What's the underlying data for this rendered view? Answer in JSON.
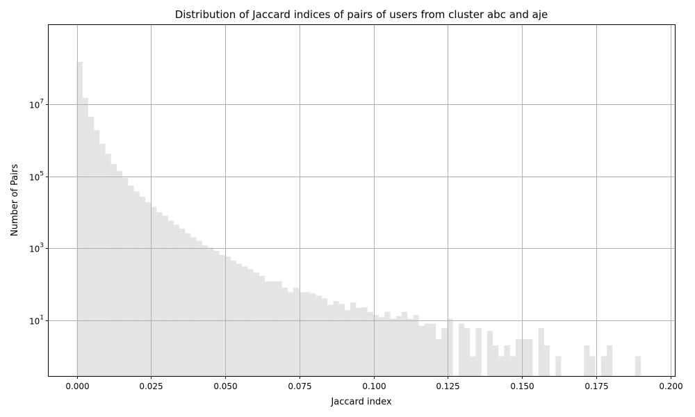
{
  "chart_data": {
    "type": "bar",
    "title": "Distribution of Jaccard indices of pairs of users from cluster abc and aje",
    "xlabel": "Jaccard index",
    "ylabel": "Number of Pairs",
    "yscale": "log",
    "xlim": [
      -0.0095,
      0.2015
    ],
    "ylim_exponent": [
      -0.55,
      9.2
    ],
    "xticks": [
      0.0,
      0.025,
      0.05,
      0.075,
      0.1,
      0.125,
      0.15,
      0.175,
      0.2
    ],
    "xtick_labels": [
      "0.000",
      "0.025",
      "0.050",
      "0.075",
      "0.100",
      "0.125",
      "0.150",
      "0.175",
      "0.200"
    ],
    "ytick_exponents": [
      1,
      3,
      5,
      7
    ],
    "ytick_base": "10",
    "grid": true,
    "bar_color": "#e4e4e4",
    "grid_color": "#b0b0b0",
    "bin_start": 0.0,
    "bin_width": 0.00192,
    "values": [
      150000000,
      15000000,
      4500000,
      1900000,
      800000,
      420000,
      220000,
      140000,
      90000,
      55000,
      38000,
      27000,
      19000,
      14000,
      10000,
      8000,
      5800,
      4500,
      3500,
      2600,
      2000,
      1600,
      1200,
      1050,
      850,
      650,
      580,
      450,
      370,
      310,
      260,
      210,
      170,
      120,
      120,
      120,
      80,
      60,
      80,
      60,
      60,
      55,
      48,
      40,
      27,
      34,
      28,
      19,
      31,
      22,
      23,
      17,
      14,
      12,
      17,
      11,
      13,
      17,
      11,
      14,
      7,
      8,
      8,
      3,
      6,
      11,
      0,
      8,
      6,
      1,
      6,
      0,
      5,
      2,
      1,
      2,
      1,
      3,
      3,
      3,
      0,
      6,
      2,
      0,
      1,
      0,
      0,
      0,
      0,
      2,
      1,
      0,
      1,
      2,
      0,
      0,
      0,
      0,
      1,
      0
    ]
  }
}
